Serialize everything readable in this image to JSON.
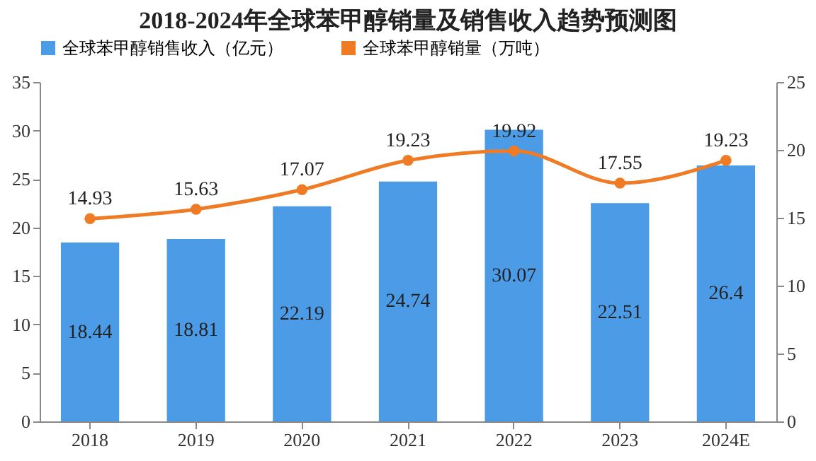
{
  "chart_data": {
    "type": "bar",
    "title": "2018-2024年全球苯甲醇销量及销售收入趋势预测图",
    "categories": [
      "2018",
      "2019",
      "2020",
      "2021",
      "2022",
      "2023",
      "2024E"
    ],
    "series": [
      {
        "name": "全球苯甲醇销售收入（亿元）",
        "color": "#4b9be6",
        "values": [
          18.44,
          18.81,
          22.19,
          24.74,
          30.07,
          22.51,
          26.4
        ]
      },
      {
        "name": "全球苯甲醇销量（万吨）",
        "type": "line",
        "axis": "y2",
        "color": "#ef7b24",
        "values": [
          14.93,
          15.63,
          17.07,
          19.23,
          19.92,
          17.55,
          19.23
        ]
      }
    ],
    "ylim": [
      0,
      35
    ],
    "yticks": [
      0,
      5,
      10,
      15,
      20,
      25,
      30,
      35
    ],
    "y2lim": [
      0,
      25
    ],
    "y2ticks": [
      0,
      5,
      10,
      15,
      20,
      25
    ],
    "data_labels": true,
    "legend": "top",
    "grid": false,
    "marker": "circle",
    "line_style": "solid"
  }
}
